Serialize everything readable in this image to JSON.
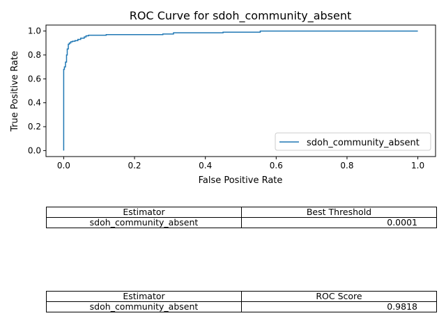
{
  "chart_data": {
    "type": "line",
    "title": "ROC Curve for sdoh_community_absent",
    "xlabel": "False Positive Rate",
    "ylabel": "True Positive Rate",
    "xlim": [
      -0.05,
      1.05
    ],
    "ylim": [
      -0.05,
      1.05
    ],
    "xticks": [
      0.0,
      0.2,
      0.4,
      0.6,
      0.8,
      1.0
    ],
    "xtick_labels": [
      "0.0",
      "0.2",
      "0.4",
      "0.6",
      "0.8",
      "1.0"
    ],
    "yticks": [
      0.0,
      0.2,
      0.4,
      0.6,
      0.8,
      1.0
    ],
    "ytick_labels": [
      "0.0",
      "0.2",
      "0.4",
      "0.6",
      "0.8",
      "1.0"
    ],
    "grid": false,
    "legend_position": "lower-right",
    "series": [
      {
        "name": "sdoh_community_absent",
        "color": "#1f77b4",
        "x": [
          0.0,
          0.0,
          0.002,
          0.002,
          0.005,
          0.005,
          0.008,
          0.008,
          0.01,
          0.01,
          0.013,
          0.013,
          0.016,
          0.016,
          0.02,
          0.02,
          0.025,
          0.025,
          0.032,
          0.032,
          0.04,
          0.04,
          0.048,
          0.048,
          0.058,
          0.058,
          0.063,
          0.063,
          0.07,
          0.07,
          0.12,
          0.12,
          0.28,
          0.28,
          0.31,
          0.31,
          0.45,
          0.45,
          0.555,
          0.555,
          1.0
        ],
        "y": [
          0.0,
          0.68,
          0.68,
          0.7,
          0.7,
          0.74,
          0.74,
          0.8,
          0.8,
          0.85,
          0.85,
          0.89,
          0.89,
          0.9,
          0.9,
          0.91,
          0.91,
          0.915,
          0.915,
          0.92,
          0.92,
          0.93,
          0.93,
          0.94,
          0.94,
          0.95,
          0.95,
          0.96,
          0.96,
          0.965,
          0.965,
          0.97,
          0.97,
          0.975,
          0.975,
          0.985,
          0.985,
          0.99,
          0.99,
          1.0,
          1.0
        ]
      }
    ]
  },
  "tables": [
    {
      "headers": [
        "Estimator",
        "Best Threshold"
      ],
      "rows": [
        [
          "sdoh_community_absent",
          "0.0001"
        ]
      ]
    },
    {
      "headers": [
        "Estimator",
        "ROC Score"
      ],
      "rows": [
        [
          "sdoh_community_absent",
          "0.9818"
        ]
      ]
    }
  ]
}
